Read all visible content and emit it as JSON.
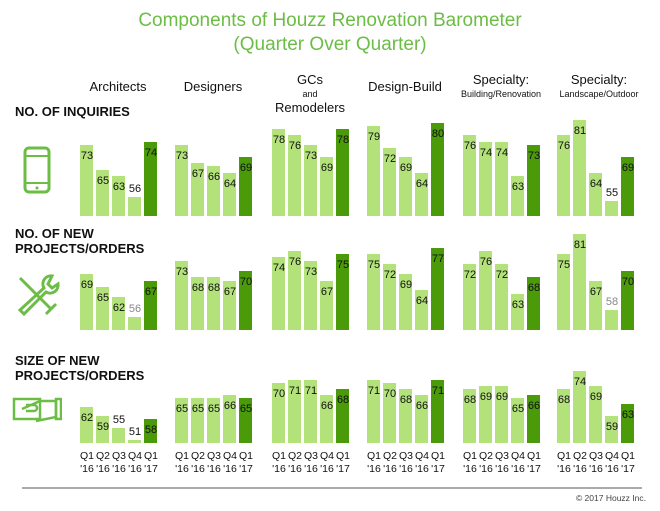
{
  "chart_data": {
    "type": "bar",
    "title": "Components of Houzz Renovation Barometer",
    "subtitle": "(Quarter Over Quarter)",
    "categories": [
      "Q1 '16",
      "Q2 '16",
      "Q3 '16",
      "Q4 '16",
      "Q1 '17"
    ],
    "category_lines": [
      [
        "Q1",
        "'16"
      ],
      [
        "Q2",
        "'16"
      ],
      [
        "Q3",
        "'16"
      ],
      [
        "Q4",
        "'16"
      ],
      [
        "Q1",
        "'17"
      ]
    ],
    "groups": [
      {
        "name": "Architects",
        "sub": ""
      },
      {
        "name": "Designers",
        "sub": ""
      },
      {
        "name": "GCs",
        "and": "and",
        "name2": "Remodelers"
      },
      {
        "name": "Design-Build",
        "sub": ""
      },
      {
        "name": "Specialty:",
        "sub": "Building/Renovation"
      },
      {
        "name": "Specialty:",
        "sub": "Landscape/Outdoor"
      }
    ],
    "rows": [
      {
        "label1": "NO. OF INQUIRIES",
        "label2": "",
        "icon": "smartphone-icon",
        "values": [
          [
            73,
            65,
            63,
            56,
            74
          ],
          [
            73,
            67,
            66,
            64,
            69
          ],
          [
            78,
            76,
            73,
            69,
            78
          ],
          [
            79,
            72,
            69,
            64,
            80
          ],
          [
            76,
            74,
            74,
            63,
            73
          ],
          [
            76,
            81,
            64,
            55,
            69
          ]
        ]
      },
      {
        "label1": "NO. OF NEW",
        "label2": "PROJECTS/ORDERS",
        "icon": "tools-icon",
        "values": [
          [
            69,
            65,
            62,
            56,
            67
          ],
          [
            73,
            68,
            68,
            67,
            70
          ],
          [
            74,
            76,
            73,
            67,
            75
          ],
          [
            75,
            72,
            69,
            64,
            77
          ],
          [
            72,
            76,
            72,
            63,
            68
          ],
          [
            75,
            81,
            67,
            58,
            70
          ]
        ]
      },
      {
        "label1": "SIZE OF NEW",
        "label2": "PROJECTS/ORDERS",
        "icon": "hand-money-icon",
        "values": [
          [
            62,
            59,
            55,
            51,
            58
          ],
          [
            65,
            65,
            65,
            66,
            65
          ],
          [
            70,
            71,
            71,
            66,
            68
          ],
          [
            71,
            70,
            68,
            66,
            71
          ],
          [
            68,
            69,
            69,
            65,
            66
          ],
          [
            68,
            74,
            69,
            59,
            63
          ]
        ]
      }
    ],
    "colors": {
      "past": "#b3e27a",
      "current": "#4a9a0a",
      "title": "#6cbd45"
    }
  },
  "footer": {
    "copyright": "© 2017 Houzz Inc."
  }
}
